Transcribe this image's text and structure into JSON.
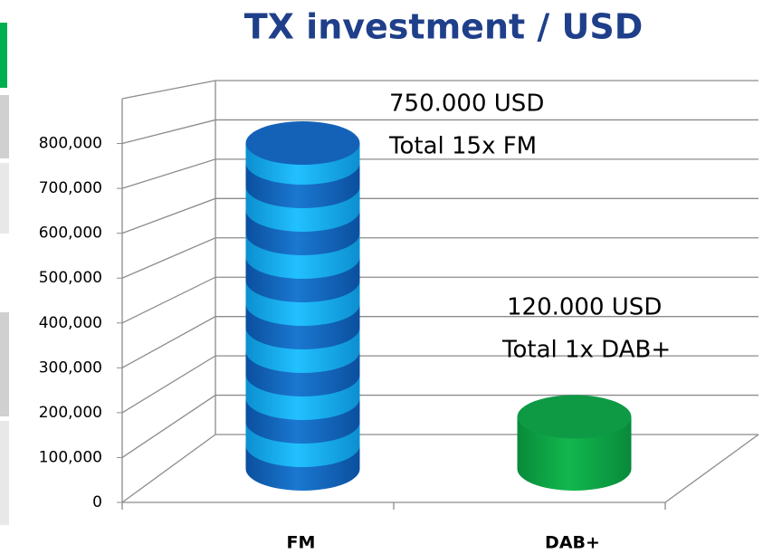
{
  "chart_data": {
    "type": "bar",
    "title": "TX investment / USD",
    "categories": [
      "FM",
      "DAB+"
    ],
    "values": [
      750000,
      120000
    ],
    "colors": [
      "#1a6fc4",
      "#00b050"
    ],
    "ylim": [
      0,
      900000
    ],
    "yticks": [
      0,
      {
        "value": 100000,
        "label": "100,000"
      },
      {
        "value": 200000,
        "label": "200,000"
      },
      {
        "value": 300000,
        "label": "300,000"
      },
      {
        "value": 400000,
        "label": "400,000"
      },
      {
        "value": 500000,
        "label": "500,000"
      },
      {
        "value": 600000,
        "label": "600,000"
      },
      {
        "value": 700000,
        "label": "700,000"
      },
      {
        "value": 800000,
        "label": "800,000"
      }
    ],
    "grid": true,
    "annotations": [
      {
        "lines": [
          "750.000 USD",
          "Total 15x FM"
        ]
      },
      {
        "lines": [
          "120.000 USD",
          "Total 1x DAB+"
        ]
      }
    ]
  }
}
